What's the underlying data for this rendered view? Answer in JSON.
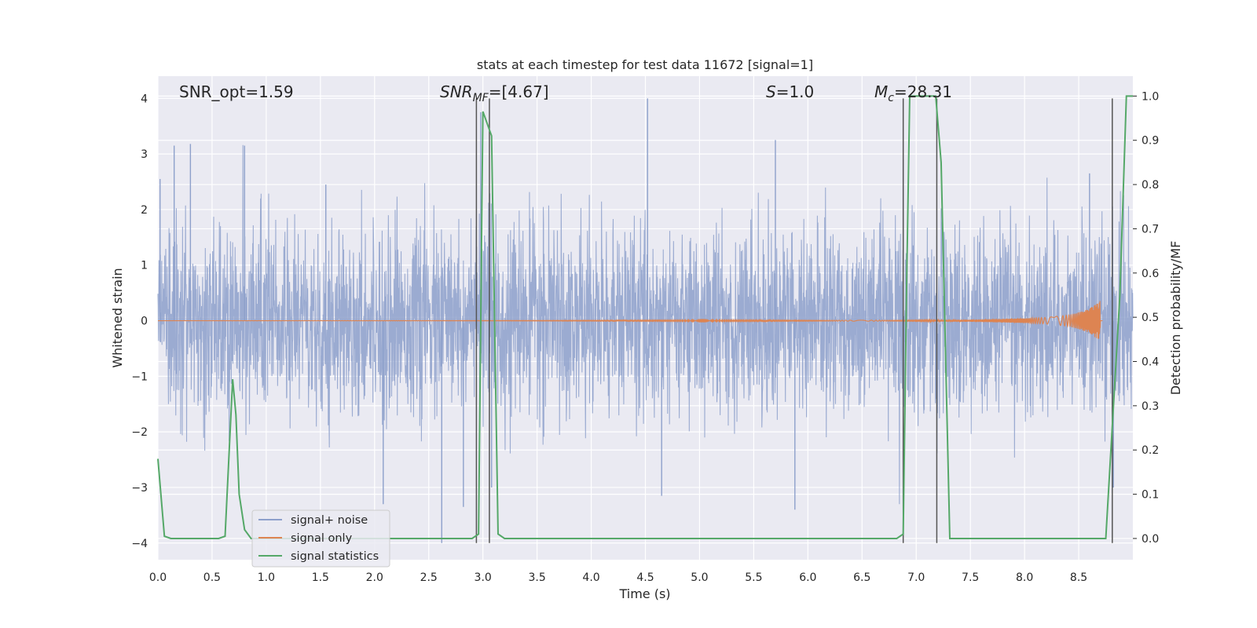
{
  "chart_data": {
    "type": "line",
    "title": "stats at each timestep for test data 11672 [signal=1]",
    "xlabel": "Time (s)",
    "ylabel": "Whitened strain",
    "y2label": "Detection probability/MF",
    "xlim": [
      0.0,
      9.0
    ],
    "ylim": [
      -4.3,
      4.4
    ],
    "y2lim": [
      -0.048,
      1.045
    ],
    "x_ticks": [
      "0.0",
      "0.5",
      "1.0",
      "1.5",
      "2.0",
      "2.5",
      "3.0",
      "3.5",
      "4.0",
      "4.5",
      "5.0",
      "5.5",
      "6.0",
      "6.5",
      "7.0",
      "7.5",
      "8.0",
      "8.5"
    ],
    "y_ticks": [
      "4",
      "3",
      "2",
      "1",
      "0",
      "−1",
      "−2",
      "−3",
      "−4"
    ],
    "y2_ticks": [
      "1.0",
      "0.9",
      "0.8",
      "0.7",
      "0.6",
      "0.5",
      "0.4",
      "0.3",
      "0.2",
      "0.1",
      "0.0"
    ],
    "grid": true,
    "legend_position": "lower-left",
    "legend": [
      "signal+ noise",
      "signal only",
      "signal statistics"
    ],
    "annotations": {
      "snr_opt": "SNR_opt=1.59",
      "snr_mf_main": "SNR",
      "snr_mf_sub": "MF",
      "snr_mf_value": "=[4.67]",
      "s_main": "S",
      "s_value": "=1.0",
      "mc_main": "M",
      "mc_sub": "c",
      "mc_value": "=28.31"
    },
    "vertical_markers": [
      2.94,
      3.06,
      6.88,
      7.19,
      8.81
    ],
    "signal_noise": {
      "name": "signal+ noise",
      "note": "whitened noise series, amplitude envelope about ±1.5 with peaks to about ±4",
      "x_range": [
        0.0,
        9.0
      ],
      "peaks": [
        [
          0.02,
          2.55
        ],
        [
          0.15,
          3.15
        ],
        [
          0.3,
          3.18
        ],
        [
          0.8,
          3.15
        ],
        [
          1.55,
          2.45
        ],
        [
          2.08,
          -3.3
        ],
        [
          2.62,
          -4.0
        ],
        [
          2.82,
          -3.35
        ],
        [
          2.98,
          3.75
        ],
        [
          3.08,
          -3.0
        ],
        [
          4.52,
          4.0
        ],
        [
          4.65,
          -3.15
        ],
        [
          5.7,
          3.25
        ],
        [
          5.88,
          -3.4
        ],
        [
          6.88,
          2.9
        ],
        [
          8.6,
          2.65
        ],
        [
          8.82,
          -3.0
        ]
      ]
    },
    "signal_only": {
      "name": "signal only",
      "note": "near zero, chirp grows toward merger",
      "x": [
        0.0,
        7.0,
        7.5,
        8.0,
        8.2,
        8.4,
        8.5,
        8.6,
        8.65,
        8.7
      ],
      "envelope": [
        0.0,
        0.01,
        0.02,
        0.04,
        0.06,
        0.1,
        0.15,
        0.22,
        0.3,
        0.36
      ]
    },
    "signal_statistics": {
      "name": "signal statistics",
      "x": [
        0.0,
        0.06,
        0.12,
        0.56,
        0.62,
        0.69,
        0.72,
        0.75,
        0.8,
        0.86,
        2.9,
        2.96,
        3.0,
        3.08,
        3.14,
        3.2,
        6.82,
        6.88,
        6.91,
        6.94,
        6.97,
        7.0,
        7.18,
        7.23,
        7.31,
        7.35,
        8.75,
        8.88,
        8.94,
        9.0
      ],
      "y": [
        0.18,
        0.005,
        0.0,
        0.0,
        0.005,
        0.36,
        0.28,
        0.1,
        0.02,
        0.0,
        0.0,
        0.01,
        0.965,
        0.91,
        0.01,
        0.0,
        0.0,
        0.01,
        0.55,
        1.0,
        1.0,
        1.0,
        1.0,
        0.85,
        0.0,
        0.0,
        0.0,
        0.55,
        1.0,
        1.0
      ]
    },
    "colors": {
      "signal_noise": "#8da0cb",
      "signal_only": "#dd8452",
      "signal_statistics": "#55a868",
      "marker": "#555555",
      "plot_bg": "#eaeaf2",
      "grid": "#ffffff"
    }
  }
}
